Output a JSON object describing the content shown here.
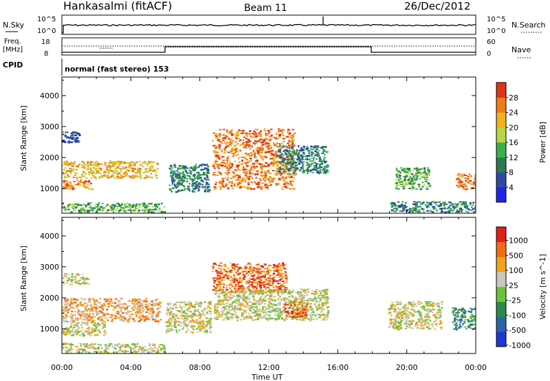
{
  "header": {
    "station": "Hankasalmi (fitACF)",
    "beam": "Beam 11",
    "date": "26/Dec/2012"
  },
  "top_panels": {
    "nsky_label": "N.Sky",
    "nsearch_label": "N.Search",
    "freq_label_line1": "Freq.",
    "freq_label_line2": "[MHz]",
    "nave_label": "Nave",
    "cpid_label": "CPID",
    "left_ticks_nsky": [
      "10^5",
      "10^0"
    ],
    "right_ticks_nsky": [
      "10^5",
      "10^0"
    ],
    "left_ticks_freq": [
      "18",
      "8"
    ],
    "right_ticks_nave": [
      "60",
      "0"
    ],
    "cpid_text": "normal (fast stereo) 153"
  },
  "chart_data": [
    {
      "type": "heatmap",
      "title": "Power",
      "ylabel": "Slant Range [km]",
      "xlabel": "",
      "x_ticks": [
        "00:00",
        "04:00",
        "08:00",
        "12:00",
        "16:00",
        "20:00",
        "00:00"
      ],
      "y_ticks": [
        1000,
        2000,
        3000,
        4000
      ],
      "ylim": [
        200,
        4600
      ],
      "xlim_hours": [
        0,
        24
      ],
      "colorbar": {
        "label": "Power [dB]",
        "ticks": [
          "4",
          "8",
          "12",
          "16",
          "20",
          "24",
          "28"
        ],
        "colors": [
          "#1f25e6",
          "#2a4aa8",
          "#2a7a52",
          "#39b04a",
          "#b8d645",
          "#f2b21d",
          "#ef7d15",
          "#e0331a"
        ]
      },
      "regions": [
        {
          "t0": 0.0,
          "t1": 5.9,
          "r0": 250,
          "r1": 550,
          "level": 3
        },
        {
          "t0": 0.0,
          "t1": 1.7,
          "r0": 1000,
          "r1": 1300,
          "level": 6
        },
        {
          "t0": 0.0,
          "t1": 5.5,
          "r0": 1350,
          "r1": 1900,
          "level": 5
        },
        {
          "t0": 0.0,
          "t1": 1.0,
          "r0": 2500,
          "r1": 2850,
          "level": 1
        },
        {
          "t0": 6.2,
          "t1": 8.5,
          "r0": 900,
          "r1": 1800,
          "level": 2
        },
        {
          "t0": 8.7,
          "t1": 13.5,
          "r0": 1000,
          "r1": 2950,
          "level": 6
        },
        {
          "t0": 12.5,
          "t1": 15.4,
          "r0": 1500,
          "r1": 2400,
          "level": 2
        },
        {
          "t0": 19.3,
          "t1": 21.3,
          "r0": 1000,
          "r1": 1700,
          "level": 3
        },
        {
          "t0": 19.0,
          "t1": 24.0,
          "r0": 250,
          "r1": 600,
          "level": 2
        },
        {
          "t0": 22.8,
          "t1": 24.0,
          "r0": 1000,
          "r1": 1500,
          "level": 6
        }
      ]
    },
    {
      "type": "heatmap",
      "title": "Velocity",
      "ylabel": "Slant Range [km]",
      "xlabel": "Time UT",
      "x_ticks": [
        "00:00",
        "04:00",
        "08:00",
        "12:00",
        "16:00",
        "20:00",
        "00:00"
      ],
      "y_ticks": [
        1000,
        2000,
        3000,
        4000
      ],
      "ylim": [
        200,
        4600
      ],
      "xlim_hours": [
        0,
        24
      ],
      "colorbar": {
        "label": "Velocity [m s^-1]",
        "ticks": [
          "1000",
          "500",
          "100",
          "25",
          "-25",
          "-100",
          "-500",
          "-1000"
        ],
        "colors": [
          "#1f35d6",
          "#2a64a8",
          "#2a8a4a",
          "#6ac23a",
          "#c8c8c0",
          "#f2a21d",
          "#ef6d15",
          "#e0201a"
        ]
      },
      "regions": [
        {
          "t0": 0.0,
          "t1": 5.9,
          "r0": 250,
          "r1": 550,
          "level": 4
        },
        {
          "t0": 0.0,
          "t1": 1.5,
          "r0": 2450,
          "r1": 2800,
          "level": 4
        },
        {
          "t0": 0.0,
          "t1": 5.7,
          "r0": 1250,
          "r1": 2000,
          "level": 5
        },
        {
          "t0": 0.0,
          "t1": 2.5,
          "r0": 800,
          "r1": 1250,
          "level": 4
        },
        {
          "t0": 6.0,
          "t1": 8.6,
          "r0": 900,
          "r1": 1900,
          "level": 4
        },
        {
          "t0": 8.7,
          "t1": 13.0,
          "r0": 2200,
          "r1": 3150,
          "level": 6
        },
        {
          "t0": 8.8,
          "t1": 15.4,
          "r0": 1300,
          "r1": 2300,
          "level": 4
        },
        {
          "t0": 12.8,
          "t1": 14.2,
          "r0": 1400,
          "r1": 1900,
          "level": 6
        },
        {
          "t0": 18.9,
          "t1": 22.0,
          "r0": 1000,
          "r1": 1900,
          "level": 4
        },
        {
          "t0": 22.6,
          "t1": 24.0,
          "r0": 1000,
          "r1": 1700,
          "level": 2
        }
      ]
    }
  ]
}
